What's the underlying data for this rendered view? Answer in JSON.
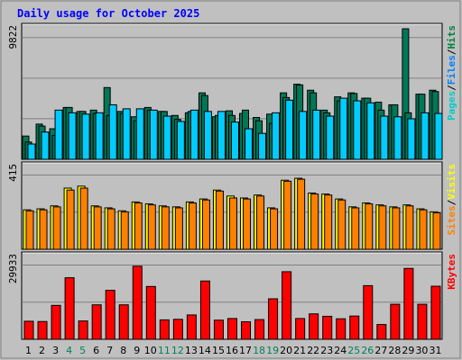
{
  "title": "Daily usage for October 2025",
  "colors": {
    "background": "#c0c0c0",
    "title_text": "#0000ff",
    "hits": "#00cccc",
    "hits_alt": "#006060",
    "files": "#00ccff",
    "pages": "#00ccff",
    "files_label": "#0080ff",
    "hits_label": "#008040",
    "hits_bar": "#007858",
    "visits": "#ffff00",
    "sites": "#ff8000",
    "sites_alt": "#ffa040",
    "kbytes": "#ff0000",
    "weekend_day": "#00805c",
    "weekday_day": "#000000"
  },
  "panels": {
    "hits_max_label": "9822",
    "visits_max_label": "415",
    "kbytes_max_label": "29933",
    "right_label_top": [
      "Pages",
      "/",
      "Files",
      "/",
      "Hits"
    ],
    "right_label_mid": [
      "Sites",
      "/",
      "Visits"
    ],
    "right_label_bottom": [
      "KBytes"
    ]
  },
  "chart_data": {
    "type": "bar",
    "title": "Daily usage for October 2025",
    "categories": [
      "1",
      "2",
      "3",
      "4",
      "5",
      "6",
      "7",
      "8",
      "9",
      "10",
      "11",
      "12",
      "13",
      "14",
      "15",
      "16",
      "17",
      "18",
      "19",
      "20",
      "21",
      "22",
      "23",
      "24",
      "25",
      "26",
      "27",
      "28",
      "29",
      "30",
      "31"
    ],
    "weekend_days": [
      4,
      5,
      11,
      12,
      18,
      19,
      25,
      26
    ],
    "panels": [
      {
        "name": "Hits/Files/Pages",
        "ylim": [
          0,
          9822
        ],
        "series": [
          {
            "name": "Hits",
            "values": [
              1750,
              2650,
              2300,
              3900,
              3600,
              3700,
              5400,
              3600,
              3200,
              3900,
              3600,
              3300,
              3500,
              5000,
              3200,
              3650,
              3450,
              3150,
              3400,
              5000,
              5650,
              5200,
              3700,
              4700,
              5000,
              4600,
              4300,
              4100,
              9822,
              4900,
              5200
            ]
          },
          {
            "name": "Files",
            "values": [
              1300,
              2500,
              1800,
              3900,
              3600,
              3450,
              3300,
              3450,
              2900,
              3700,
              3600,
              3000,
              3600,
              4800,
              3300,
              3300,
              3700,
              2900,
              2700,
              4650,
              5600,
              5000,
              3500,
              4400,
              4950,
              4600,
              3700,
              4100,
              3500,
              4900,
              5100
            ]
          },
          {
            "name": "Pages",
            "values": [
              1150,
              2050,
              3700,
              3500,
              3400,
              3500,
              4100,
              3800,
              3800,
              3700,
              3250,
              2850,
              3700,
              3600,
              3600,
              2800,
              2300,
              1950,
              3500,
              4450,
              3600,
              3700,
              3250,
              4600,
              4400,
              4250,
              3250,
              3200,
              3050,
              3500,
              3450
            ]
          }
        ]
      },
      {
        "name": "Sites/Visits",
        "ylim": [
          0,
          415
        ],
        "series": [
          {
            "name": "Visits",
            "values": [
              200,
              205,
              220,
              310,
              320,
              220,
              210,
              195,
              240,
              230,
              220,
              215,
              240,
              255,
              300,
              270,
              260,
              275,
              210,
              350,
              360,
              285,
              280,
              255,
              215,
              235,
              225,
              215,
              225,
              205,
              190
            ]
          },
          {
            "name": "Sites",
            "values": [
              195,
              200,
              215,
              300,
              310,
              215,
              205,
              190,
              235,
              225,
              215,
              210,
              235,
              250,
              295,
              260,
              255,
              270,
              205,
              345,
              355,
              280,
              275,
              250,
              210,
              230,
              220,
              210,
              220,
              200,
              185
            ]
          }
        ]
      },
      {
        "name": "KBytes",
        "ylim": [
          0,
          29933
        ],
        "series": [
          {
            "name": "KBytes",
            "values": [
              6600,
              6500,
              12400,
              22500,
              6700,
              12600,
              17900,
              12600,
              26700,
              19300,
              7100,
              7300,
              8900,
              21300,
              7000,
              7600,
              6400,
              7200,
              14800,
              24700,
              7600,
              9300,
              8400,
              7500,
              8500,
              19600,
              5400,
              12800,
              25900,
              12800,
              19400
            ]
          }
        ]
      }
    ]
  }
}
